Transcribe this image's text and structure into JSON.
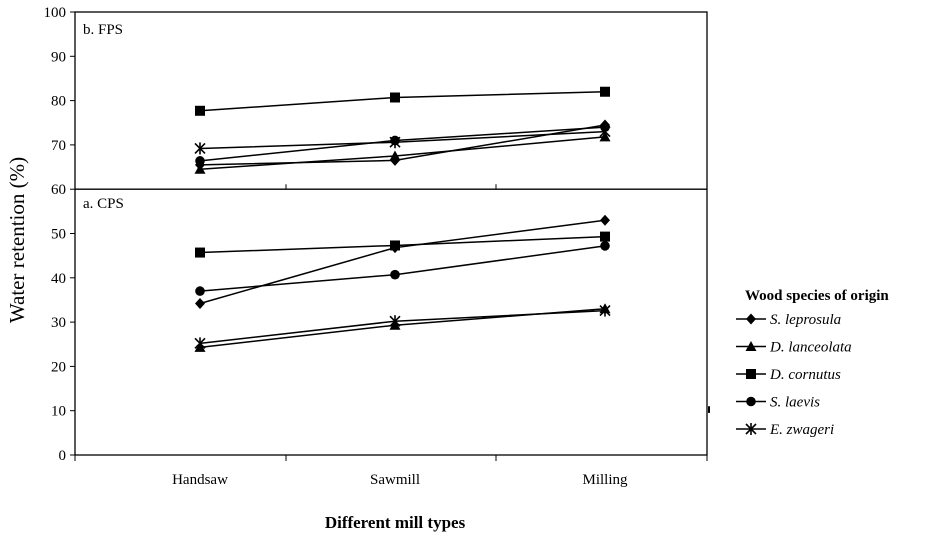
{
  "chart_data": {
    "type": "line",
    "ylabel": "Water retention (%)",
    "xlabel": "Different mill types",
    "categories": [
      "Handsaw",
      "Sawmill",
      "Milling"
    ],
    "ylim": [
      0,
      100
    ],
    "yticks": [
      0,
      10,
      20,
      30,
      40,
      50,
      60,
      70,
      80,
      90,
      100
    ],
    "grid": false,
    "legend": {
      "title": "Wood species of origin",
      "placement": "right",
      "entries": [
        "S. leprosula",
        "D. lanceolata",
        "D. cornutus",
        "S. laevis",
        "E. zwageri"
      ]
    },
    "panels": [
      {
        "label": "b. FPS",
        "yrange": [
          60,
          100
        ],
        "series": [
          {
            "name": "S. leprosula",
            "marker": "diamond",
            "values": [
              65.5,
              66.5,
              74.5
            ]
          },
          {
            "name": "D. lanceolata",
            "marker": "triangle",
            "values": [
              64.5,
              67.5,
              71.8
            ]
          },
          {
            "name": "D. cornutus",
            "marker": "square",
            "values": [
              77.7,
              80.7,
              82.0
            ]
          },
          {
            "name": "S. laevis",
            "marker": "circle",
            "values": [
              66.4,
              71.0,
              74.0
            ]
          },
          {
            "name": "E. zwageri",
            "marker": "star",
            "values": [
              69.2,
              70.6,
              73.0
            ]
          }
        ]
      },
      {
        "label": "a. CPS",
        "yrange": [
          0,
          60
        ],
        "series": [
          {
            "name": "S. leprosula",
            "marker": "diamond",
            "values": [
              34.2,
              46.8,
              53.0
            ]
          },
          {
            "name": "D. lanceolata",
            "marker": "triangle",
            "values": [
              24.3,
              29.3,
              33.0
            ]
          },
          {
            "name": "D. cornutus",
            "marker": "square",
            "values": [
              45.7,
              47.3,
              49.3
            ]
          },
          {
            "name": "S. laevis",
            "marker": "circle",
            "values": [
              37.0,
              40.7,
              47.2
            ]
          },
          {
            "name": "E. zwageri",
            "marker": "star",
            "values": [
              25.2,
              30.2,
              32.6
            ]
          }
        ]
      }
    ]
  }
}
